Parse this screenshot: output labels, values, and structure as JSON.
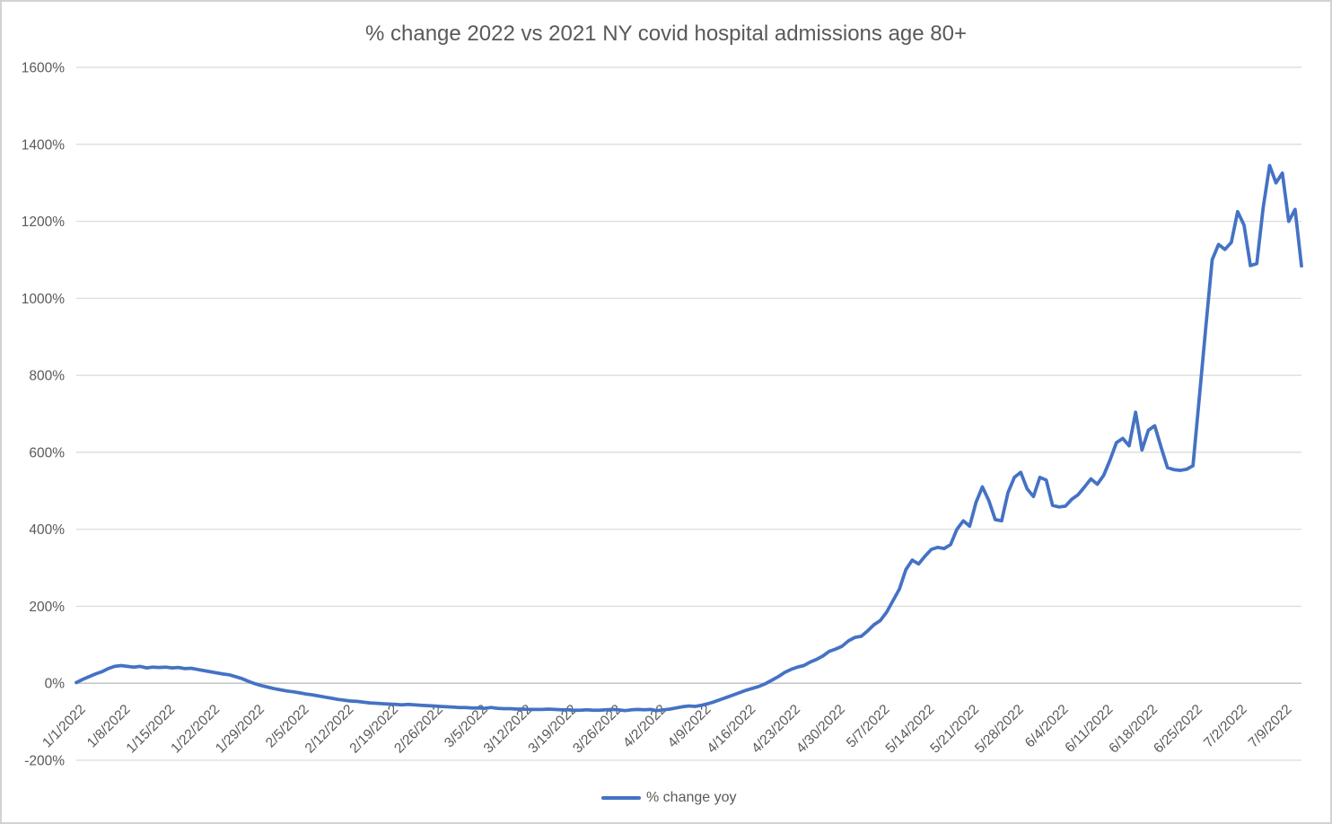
{
  "chart_data": {
    "type": "line",
    "title": "% change 2022 vs 2021 NY covid hospital admissions age 80+",
    "xlabel": "",
    "ylabel": "",
    "ylim": [
      -200,
      1600
    ],
    "y_tick_step": 200,
    "y_tick_labels": [
      "1600%",
      "1400%",
      "1200%",
      "1000%",
      "800%",
      "600%",
      "400%",
      "200%",
      "0%",
      "-200%"
    ],
    "x_start": "1/1/2022",
    "x_end": "7/12/2022",
    "x_tick_every": 7,
    "x_tick_labels": [
      "1/1/2022",
      "1/8/2022",
      "1/15/2022",
      "1/22/2022",
      "1/29/2022",
      "2/5/2022",
      "2/12/2022",
      "2/19/2022",
      "2/26/2022",
      "3/5/2022",
      "3/12/2022",
      "3/19/2022",
      "3/26/2022",
      "4/2/2022",
      "4/9/2022",
      "4/16/2022",
      "4/23/2022",
      "4/30/2022",
      "5/7/2022",
      "5/14/2022",
      "5/21/2022",
      "5/28/2022",
      "6/4/2022",
      "6/11/2022",
      "6/18/2022",
      "6/25/2022",
      "7/2/2022",
      "7/9/2022"
    ],
    "grid": true,
    "legend_position": "bottom",
    "series": [
      {
        "name": "% change yoy",
        "color": "#4472C4",
        "values": [
          2,
          10,
          17,
          24,
          30,
          38,
          44,
          46,
          44,
          42,
          44,
          40,
          42,
          41,
          42,
          40,
          41,
          38,
          39,
          36,
          33,
          30,
          27,
          24,
          22,
          17,
          12,
          5,
          -1,
          -6,
          -10,
          -14,
          -17,
          -20,
          -22,
          -25,
          -28,
          -30,
          -33,
          -36,
          -39,
          -42,
          -44,
          -46,
          -47,
          -49,
          -51,
          -52,
          -53,
          -54,
          -55,
          -56,
          -55,
          -56,
          -57,
          -58,
          -59,
          -60,
          -61,
          -62,
          -63,
          -63,
          -64,
          -64,
          -65,
          -63,
          -65,
          -66,
          -66,
          -67,
          -67,
          -68,
          -68,
          -68,
          -67,
          -68,
          -69,
          -69,
          -70,
          -70,
          -69,
          -70,
          -70,
          -69,
          -68,
          -69,
          -71,
          -69,
          -68,
          -69,
          -68,
          -71,
          -69,
          -67,
          -64,
          -61,
          -59,
          -60,
          -57,
          -53,
          -48,
          -42,
          -36,
          -30,
          -24,
          -18,
          -13,
          -8,
          -1,
          8,
          17,
          28,
          36,
          42,
          46,
          55,
          62,
          71,
          83,
          89,
          96,
          110,
          119,
          122,
          136,
          152,
          163,
          185,
          215,
          245,
          295,
          320,
          310,
          330,
          348,
          353,
          350,
          360,
          400,
          422,
          408,
          470,
          510,
          475,
          425,
          422,
          495,
          535,
          548,
          505,
          485,
          535,
          528,
          462,
          458,
          460,
          478,
          490,
          510,
          531,
          517,
          540,
          580,
          625,
          636,
          617,
          704,
          606,
          657,
          669,
          613,
          560,
          555,
          553,
          556,
          565,
          745,
          925,
          1100,
          1140,
          1127,
          1145,
          1225,
          1190,
          1085,
          1090,
          1235,
          1345,
          1300,
          1325,
          1200,
          1231,
          1084
        ]
      }
    ],
    "colors": {
      "line": "#4472C4",
      "gridline": "#D9D9D9",
      "axis_line": "#C8C8C8",
      "text": "#595959",
      "border": "#D2D2D2",
      "background": "#FFFFFF"
    }
  }
}
